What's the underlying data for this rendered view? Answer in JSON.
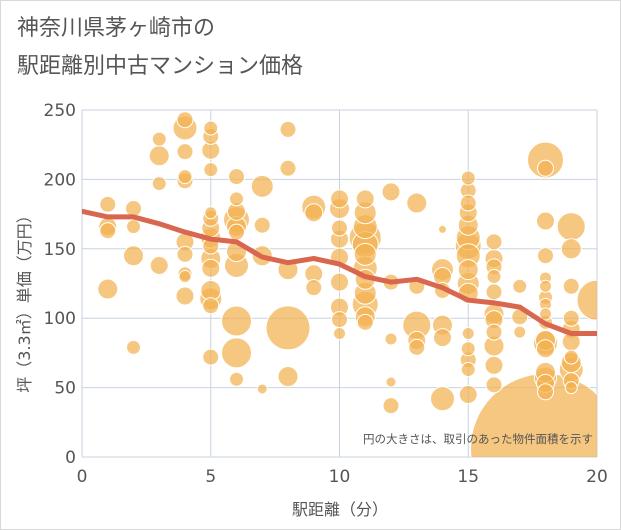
{
  "page": {
    "title_line1": "神奈川県茅ヶ崎市の",
    "title_line2": "駅距離別中古マンション価格"
  },
  "colors": {
    "bubble": "#f2b24f",
    "bubble_stroke": "#ffffff",
    "trend": "#d9664f",
    "grid": "#c8d3e0",
    "plot_bg": "#ffffff"
  },
  "chart_data": {
    "type": "scatter",
    "xlabel": "駅距離（分）",
    "ylabel": "坪（3.3㎡）単価（万円）",
    "xlim": [
      0,
      20
    ],
    "ylim": [
      0,
      250
    ],
    "xticks": [
      0,
      5,
      10,
      15,
      20
    ],
    "yticks": [
      0,
      50,
      100,
      150,
      200,
      250
    ],
    "grid": true,
    "annotation": "円の大きさは、取引のあった物件面積を示す",
    "trend_line": {
      "x": [
        0,
        1,
        2,
        3,
        4,
        5,
        6,
        7,
        8,
        9,
        10,
        11,
        12,
        13,
        14,
        15,
        16,
        17,
        18,
        19,
        20
      ],
      "y": [
        177,
        173,
        173,
        168,
        162,
        157,
        155,
        144,
        140,
        143,
        139,
        130,
        126,
        128,
        122,
        113,
        111,
        108,
        96,
        89,
        89
      ]
    },
    "points": [
      {
        "x": 1,
        "y": 182,
        "size": 8
      },
      {
        "x": 1,
        "y": 166,
        "size": 9
      },
      {
        "x": 1,
        "y": 163,
        "size": 8
      },
      {
        "x": 1,
        "y": 121,
        "size": 10
      },
      {
        "x": 2,
        "y": 179,
        "size": 8
      },
      {
        "x": 2,
        "y": 166,
        "size": 7
      },
      {
        "x": 2,
        "y": 145,
        "size": 10
      },
      {
        "x": 2,
        "y": 79,
        "size": 7
      },
      {
        "x": 3,
        "y": 229,
        "size": 7
      },
      {
        "x": 3,
        "y": 217,
        "size": 10
      },
      {
        "x": 3,
        "y": 197,
        "size": 7
      },
      {
        "x": 3,
        "y": 138,
        "size": 9
      },
      {
        "x": 4,
        "y": 243,
        "size": 8
      },
      {
        "x": 4,
        "y": 237,
        "size": 12
      },
      {
        "x": 4,
        "y": 220,
        "size": 8
      },
      {
        "x": 4,
        "y": 202,
        "size": 7
      },
      {
        "x": 4,
        "y": 199,
        "size": 8
      },
      {
        "x": 4,
        "y": 155,
        "size": 9
      },
      {
        "x": 4,
        "y": 146,
        "size": 8
      },
      {
        "x": 4,
        "y": 132,
        "size": 7
      },
      {
        "x": 4,
        "y": 130,
        "size": 6
      },
      {
        "x": 4,
        "y": 116,
        "size": 9
      },
      {
        "x": 5,
        "y": 237,
        "size": 7
      },
      {
        "x": 5,
        "y": 231,
        "size": 8
      },
      {
        "x": 5,
        "y": 221,
        "size": 9
      },
      {
        "x": 5,
        "y": 207,
        "size": 7
      },
      {
        "x": 5,
        "y": 176,
        "size": 6
      },
      {
        "x": 5,
        "y": 172,
        "size": 8
      },
      {
        "x": 5,
        "y": 165,
        "size": 9
      },
      {
        "x": 5,
        "y": 158,
        "size": 10
      },
      {
        "x": 5,
        "y": 152,
        "size": 8
      },
      {
        "x": 5,
        "y": 143,
        "size": 10
      },
      {
        "x": 5,
        "y": 136,
        "size": 9
      },
      {
        "x": 5,
        "y": 120,
        "size": 10
      },
      {
        "x": 5,
        "y": 114,
        "size": 11
      },
      {
        "x": 5,
        "y": 109,
        "size": 8
      },
      {
        "x": 5,
        "y": 72,
        "size": 8
      },
      {
        "x": 6,
        "y": 202,
        "size": 8
      },
      {
        "x": 6,
        "y": 186,
        "size": 7
      },
      {
        "x": 6,
        "y": 177,
        "size": 9
      },
      {
        "x": 6,
        "y": 171,
        "size": 13
      },
      {
        "x": 6,
        "y": 166,
        "size": 10
      },
      {
        "x": 6,
        "y": 162,
        "size": 8
      },
      {
        "x": 6,
        "y": 148,
        "size": 10
      },
      {
        "x": 6,
        "y": 138,
        "size": 12
      },
      {
        "x": 6,
        "y": 98,
        "size": 15
      },
      {
        "x": 6,
        "y": 75,
        "size": 15
      },
      {
        "x": 6,
        "y": 56,
        "size": 7
      },
      {
        "x": 7,
        "y": 195,
        "size": 11
      },
      {
        "x": 7,
        "y": 167,
        "size": 8
      },
      {
        "x": 7,
        "y": 145,
        "size": 10
      },
      {
        "x": 7,
        "y": 49,
        "size": 5
      },
      {
        "x": 8,
        "y": 236,
        "size": 8
      },
      {
        "x": 8,
        "y": 208,
        "size": 8
      },
      {
        "x": 8,
        "y": 135,
        "size": 10
      },
      {
        "x": 8,
        "y": 93,
        "size": 22
      },
      {
        "x": 8,
        "y": 58,
        "size": 10
      },
      {
        "x": 9,
        "y": 180,
        "size": 12
      },
      {
        "x": 9,
        "y": 176,
        "size": 9
      },
      {
        "x": 9,
        "y": 132,
        "size": 9
      },
      {
        "x": 9,
        "y": 122,
        "size": 8
      },
      {
        "x": 10,
        "y": 186,
        "size": 9
      },
      {
        "x": 10,
        "y": 179,
        "size": 10
      },
      {
        "x": 10,
        "y": 165,
        "size": 8
      },
      {
        "x": 10,
        "y": 157,
        "size": 9
      },
      {
        "x": 10,
        "y": 144,
        "size": 9
      },
      {
        "x": 10,
        "y": 126,
        "size": 9
      },
      {
        "x": 10,
        "y": 108,
        "size": 9
      },
      {
        "x": 10,
        "y": 99,
        "size": 8
      },
      {
        "x": 10,
        "y": 89,
        "size": 6
      },
      {
        "x": 11,
        "y": 186,
        "size": 9
      },
      {
        "x": 11,
        "y": 176,
        "size": 11
      },
      {
        "x": 11,
        "y": 166,
        "size": 12
      },
      {
        "x": 11,
        "y": 158,
        "size": 16
      },
      {
        "x": 11,
        "y": 153,
        "size": 13
      },
      {
        "x": 11,
        "y": 146,
        "size": 11
      },
      {
        "x": 11,
        "y": 136,
        "size": 12
      },
      {
        "x": 11,
        "y": 128,
        "size": 10
      },
      {
        "x": 11,
        "y": 118,
        "size": 11
      },
      {
        "x": 11,
        "y": 110,
        "size": 13
      },
      {
        "x": 11,
        "y": 101,
        "size": 10
      },
      {
        "x": 11,
        "y": 97,
        "size": 8
      },
      {
        "x": 12,
        "y": 191,
        "size": 9
      },
      {
        "x": 12,
        "y": 126,
        "size": 8
      },
      {
        "x": 12,
        "y": 85,
        "size": 6
      },
      {
        "x": 12,
        "y": 54,
        "size": 5
      },
      {
        "x": 12,
        "y": 37,
        "size": 8
      },
      {
        "x": 13,
        "y": 183,
        "size": 10
      },
      {
        "x": 13,
        "y": 123,
        "size": 8
      },
      {
        "x": 13,
        "y": 95,
        "size": 14
      },
      {
        "x": 13,
        "y": 84,
        "size": 9
      },
      {
        "x": 13,
        "y": 79,
        "size": 8
      },
      {
        "x": 14,
        "y": 164,
        "size": 4
      },
      {
        "x": 14,
        "y": 135,
        "size": 11
      },
      {
        "x": 14,
        "y": 130,
        "size": 9
      },
      {
        "x": 14,
        "y": 120,
        "size": 8
      },
      {
        "x": 14,
        "y": 95,
        "size": 10
      },
      {
        "x": 14,
        "y": 86,
        "size": 9
      },
      {
        "x": 14,
        "y": 42,
        "size": 12
      },
      {
        "x": 15,
        "y": 201,
        "size": 7
      },
      {
        "x": 15,
        "y": 192,
        "size": 8
      },
      {
        "x": 15,
        "y": 183,
        "size": 8
      },
      {
        "x": 15,
        "y": 176,
        "size": 9
      },
      {
        "x": 15,
        "y": 167,
        "size": 10
      },
      {
        "x": 15,
        "y": 158,
        "size": 12
      },
      {
        "x": 15,
        "y": 152,
        "size": 13
      },
      {
        "x": 15,
        "y": 145,
        "size": 12
      },
      {
        "x": 15,
        "y": 135,
        "size": 10
      },
      {
        "x": 15,
        "y": 125,
        "size": 11
      },
      {
        "x": 15,
        "y": 118,
        "size": 10
      },
      {
        "x": 15,
        "y": 89,
        "size": 6
      },
      {
        "x": 15,
        "y": 78,
        "size": 7
      },
      {
        "x": 15,
        "y": 70,
        "size": 8
      },
      {
        "x": 15,
        "y": 63,
        "size": 7
      },
      {
        "x": 15,
        "y": 45,
        "size": 9
      },
      {
        "x": 16,
        "y": 155,
        "size": 8
      },
      {
        "x": 16,
        "y": 143,
        "size": 9
      },
      {
        "x": 16,
        "y": 137,
        "size": 8
      },
      {
        "x": 16,
        "y": 130,
        "size": 7
      },
      {
        "x": 16,
        "y": 119,
        "size": 8
      },
      {
        "x": 16,
        "y": 103,
        "size": 10
      },
      {
        "x": 16,
        "y": 99,
        "size": 9
      },
      {
        "x": 16,
        "y": 90,
        "size": 8
      },
      {
        "x": 16,
        "y": 80,
        "size": 10
      },
      {
        "x": 16,
        "y": 66,
        "size": 9
      },
      {
        "x": 16,
        "y": 52,
        "size": 8
      },
      {
        "x": 17,
        "y": 123,
        "size": 7
      },
      {
        "x": 17,
        "y": 101,
        "size": 8
      },
      {
        "x": 17,
        "y": 90,
        "size": 6
      },
      {
        "x": 18,
        "y": 214,
        "size": 18
      },
      {
        "x": 18,
        "y": 208,
        "size": 8
      },
      {
        "x": 18,
        "y": 170,
        "size": 9
      },
      {
        "x": 18,
        "y": 145,
        "size": 8
      },
      {
        "x": 18,
        "y": 129,
        "size": 6
      },
      {
        "x": 18,
        "y": 123,
        "size": 6
      },
      {
        "x": 18,
        "y": 115,
        "size": 7
      },
      {
        "x": 18,
        "y": 110,
        "size": 6
      },
      {
        "x": 18,
        "y": 103,
        "size": 6
      },
      {
        "x": 18,
        "y": 97,
        "size": 7
      },
      {
        "x": 18,
        "y": 84,
        "size": 10
      },
      {
        "x": 18,
        "y": 82,
        "size": 12
      },
      {
        "x": 18,
        "y": 78,
        "size": 9
      },
      {
        "x": 18,
        "y": 61,
        "size": 10
      },
      {
        "x": 18,
        "y": 57,
        "size": 11
      },
      {
        "x": 18,
        "y": 53,
        "size": 9
      },
      {
        "x": 18,
        "y": 47,
        "size": 8
      },
      {
        "x": 18,
        "y": 6,
        "size": 75
      },
      {
        "x": 19,
        "y": 166,
        "size": 14
      },
      {
        "x": 19,
        "y": 150,
        "size": 10
      },
      {
        "x": 19,
        "y": 123,
        "size": 8
      },
      {
        "x": 19,
        "y": 100,
        "size": 8
      },
      {
        "x": 19,
        "y": 92,
        "size": 9
      },
      {
        "x": 19,
        "y": 83,
        "size": 9
      },
      {
        "x": 19,
        "y": 72,
        "size": 7
      },
      {
        "x": 19,
        "y": 68,
        "size": 10
      },
      {
        "x": 19,
        "y": 63,
        "size": 12
      },
      {
        "x": 19,
        "y": 55,
        "size": 8
      },
      {
        "x": 19,
        "y": 50,
        "size": 6
      },
      {
        "x": 20,
        "y": 113,
        "size": 20
      }
    ]
  }
}
